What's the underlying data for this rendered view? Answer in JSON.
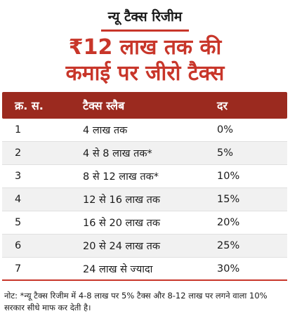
{
  "header": {
    "kicker": "न्यू टैक्स रिजीम",
    "headline_line1": "₹12 लाख तक की",
    "headline_line2": "कमाई पर जीरो टैक्स"
  },
  "table": {
    "columns": [
      "क्र. स.",
      "टैक्स स्लैब",
      "दर"
    ],
    "rows": [
      [
        "1",
        "4 लाख तक",
        "0%"
      ],
      [
        "2",
        "4 से 8 लाख तक*",
        "5%"
      ],
      [
        "3",
        "8 से 12 लाख तक*",
        "10%"
      ],
      [
        "4",
        "12 से 16 लाख तक",
        "15%"
      ],
      [
        "5",
        "16 से 20 लाख तक",
        "20%"
      ],
      [
        "6",
        "20 से 24 लाख तक",
        "25%"
      ],
      [
        "7",
        "24 लाख से ज्यादा",
        "30%"
      ]
    ]
  },
  "note": "नोट: *न्यू टैक्स रिजीम में 4-8 लाख पर 5% टैक्स और 8-12 लाख पर लगने वाला 10% सरकार सीधे माफ कर देती है।",
  "colors": {
    "accent": "#c8362a",
    "header_bg": "#9b2a1f",
    "row_alt": "#f1f1f1"
  }
}
